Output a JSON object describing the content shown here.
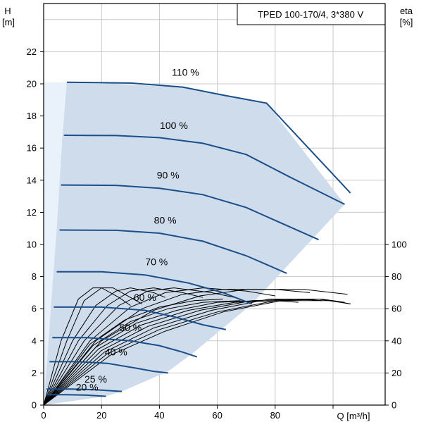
{
  "chart_data": {
    "type": "line",
    "title": "TPED 100-170/4, 3*380 V",
    "y_left": {
      "label": "H",
      "unit": "[m]",
      "lim": [
        0,
        25
      ],
      "ticks": [
        0,
        2,
        4,
        6,
        8,
        10,
        12,
        14,
        16,
        18,
        20,
        22
      ]
    },
    "y_right": {
      "label": "eta",
      "unit": "[%]",
      "lim": [
        0,
        100
      ],
      "ticks": [
        0,
        20,
        40,
        60,
        80,
        100
      ]
    },
    "x": {
      "label": "Q [m³/h]",
      "lim": [
        0,
        118
      ],
      "ticks": [
        0,
        20,
        40,
        60,
        80
      ]
    },
    "grid": true,
    "operating_area": [
      [
        0,
        0
      ],
      [
        0,
        20.1
      ],
      [
        8,
        20.1
      ],
      [
        6.5,
        16.8
      ],
      [
        5.5,
        13.7
      ],
      [
        4.5,
        10.9
      ],
      [
        3.5,
        8.3
      ],
      [
        2.5,
        6.1
      ],
      [
        1.8,
        4.2
      ],
      [
        1.2,
        2.7
      ],
      [
        0.6,
        1.0
      ],
      [
        0,
        0
      ]
    ],
    "operating_area_full": [
      [
        8,
        20.1
      ],
      [
        48,
        19.8
      ],
      [
        77,
        18.8
      ],
      [
        104,
        12.5
      ],
      [
        72,
        6.3
      ],
      [
        52,
        3.3
      ],
      [
        43,
        2.1
      ],
      [
        27,
        0.85
      ],
      [
        21.5,
        0.55
      ],
      [
        0,
        0
      ]
    ],
    "head_curves": [
      {
        "label": "110 %",
        "points": [
          [
            8,
            20.1
          ],
          [
            30,
            20.05
          ],
          [
            48,
            19.8
          ],
          [
            62,
            19.3
          ],
          [
            77,
            18.8
          ],
          [
            106,
            13.2
          ]
        ]
      },
      {
        "label": "100 %",
        "points": [
          [
            7,
            16.8
          ],
          [
            25,
            16.78
          ],
          [
            40,
            16.65
          ],
          [
            55,
            16.3
          ],
          [
            70,
            15.6
          ],
          [
            85,
            14.2
          ],
          [
            104,
            12.5
          ]
        ]
      },
      {
        "label": "90 %",
        "points": [
          [
            6,
            13.7
          ],
          [
            25,
            13.68
          ],
          [
            40,
            13.5
          ],
          [
            55,
            13.1
          ],
          [
            70,
            12.3
          ],
          [
            95,
            10.3
          ]
        ]
      },
      {
        "label": "80 %",
        "points": [
          [
            5.5,
            10.9
          ],
          [
            25,
            10.88
          ],
          [
            40,
            10.7
          ],
          [
            55,
            10.2
          ],
          [
            70,
            9.3
          ],
          [
            84,
            8.2
          ]
        ]
      },
      {
        "label": "70 %",
        "points": [
          [
            4.5,
            8.3
          ],
          [
            20,
            8.3
          ],
          [
            35,
            8.1
          ],
          [
            50,
            7.6
          ],
          [
            62,
            7.0
          ],
          [
            72,
            6.3
          ]
        ]
      },
      {
        "label": "60 %",
        "points": [
          [
            3.5,
            6.1
          ],
          [
            20,
            6.1
          ],
          [
            35,
            5.9
          ],
          [
            45,
            5.5
          ],
          [
            55,
            5.0
          ],
          [
            63,
            4.7
          ]
        ]
      },
      {
        "label": "50 %",
        "points": [
          [
            3,
            4.2
          ],
          [
            15,
            4.2
          ],
          [
            30,
            4.0
          ],
          [
            40,
            3.7
          ],
          [
            48,
            3.3
          ],
          [
            53,
            3.0
          ]
        ]
      },
      {
        "label": "40 %",
        "points": [
          [
            2,
            2.7
          ],
          [
            12,
            2.7
          ],
          [
            22,
            2.6
          ],
          [
            32,
            2.3
          ],
          [
            38,
            2.1
          ],
          [
            43,
            2.0
          ]
        ]
      },
      {
        "label": "25 %",
        "points": [
          [
            1,
            1.0
          ],
          [
            10,
            1.0
          ],
          [
            18,
            0.95
          ],
          [
            27,
            0.85
          ]
        ]
      },
      {
        "label": "20 %",
        "points": [
          [
            0.8,
            0.65
          ],
          [
            8,
            0.65
          ],
          [
            15,
            0.62
          ],
          [
            21.5,
            0.55
          ]
        ]
      }
    ],
    "efficiency_curves": [
      {
        "points": [
          [
            0,
            0
          ],
          [
            6,
            40
          ],
          [
            12,
            66
          ],
          [
            17,
            73
          ],
          [
            20,
            73
          ],
          [
            26,
            67
          ],
          [
            30,
            62
          ]
        ]
      },
      {
        "points": [
          [
            0,
            0
          ],
          [
            8,
            40
          ],
          [
            14,
            65
          ],
          [
            20,
            73
          ],
          [
            24,
            73
          ],
          [
            30,
            67
          ],
          [
            34,
            63
          ]
        ]
      },
      {
        "points": [
          [
            0,
            0
          ],
          [
            10,
            40
          ],
          [
            18,
            62
          ],
          [
            25,
            71
          ],
          [
            30,
            73
          ],
          [
            38,
            70
          ],
          [
            42,
            67
          ]
        ]
      },
      {
        "points": [
          [
            0,
            0
          ],
          [
            12,
            40
          ],
          [
            22,
            62
          ],
          [
            30,
            71
          ],
          [
            38,
            73
          ],
          [
            48,
            70
          ],
          [
            55,
            67
          ]
        ]
      },
      {
        "points": [
          [
            0,
            0
          ],
          [
            14,
            40
          ],
          [
            26,
            62
          ],
          [
            36,
            71
          ],
          [
            45,
            73
          ],
          [
            58,
            70
          ],
          [
            66,
            67
          ]
        ]
      },
      {
        "points": [
          [
            0,
            0
          ],
          [
            16,
            40
          ],
          [
            30,
            61
          ],
          [
            42,
            70
          ],
          [
            55,
            73
          ],
          [
            70,
            71
          ],
          [
            80,
            68
          ]
        ]
      },
      {
        "points": [
          [
            0,
            0
          ],
          [
            18,
            40
          ],
          [
            34,
            60
          ],
          [
            48,
            69
          ],
          [
            62,
            72
          ],
          [
            80,
            72
          ],
          [
            92,
            70
          ]
        ]
      },
      {
        "points": [
          [
            0,
            0
          ],
          [
            20,
            40
          ],
          [
            38,
            59
          ],
          [
            54,
            68
          ],
          [
            70,
            72
          ],
          [
            90,
            72
          ],
          [
            105,
            69
          ]
        ]
      },
      {
        "points": [
          [
            0,
            0
          ],
          [
            16,
            38
          ],
          [
            28,
            53
          ],
          [
            40,
            61
          ],
          [
            52,
            65
          ],
          [
            62,
            66
          ]
        ]
      },
      {
        "points": [
          [
            0,
            0
          ],
          [
            17,
            37
          ],
          [
            30,
            52
          ],
          [
            43,
            60
          ],
          [
            55,
            64
          ],
          [
            68,
            65
          ]
        ]
      },
      {
        "points": [
          [
            0,
            0
          ],
          [
            18,
            36
          ],
          [
            32,
            51
          ],
          [
            46,
            59
          ],
          [
            60,
            64
          ],
          [
            74,
            65
          ]
        ]
      },
      {
        "points": [
          [
            0,
            0
          ],
          [
            19,
            35
          ],
          [
            34,
            50
          ],
          [
            50,
            59
          ],
          [
            66,
            64
          ],
          [
            80,
            65
          ],
          [
            88,
            64
          ]
        ]
      },
      {
        "points": [
          [
            0,
            0
          ],
          [
            20,
            34
          ],
          [
            36,
            49
          ],
          [
            54,
            59
          ],
          [
            72,
            65
          ],
          [
            88,
            66
          ],
          [
            96,
            65
          ]
        ]
      },
      {
        "points": [
          [
            0,
            0
          ],
          [
            21,
            33
          ],
          [
            38,
            48
          ],
          [
            58,
            59
          ],
          [
            78,
            66
          ],
          [
            95,
            66
          ],
          [
            106,
            63
          ]
        ]
      },
      {
        "points": [
          [
            0,
            0
          ],
          [
            22,
            32
          ],
          [
            40,
            47
          ],
          [
            60,
            58
          ],
          [
            80,
            65
          ],
          [
            96,
            66
          ],
          [
            104,
            64
          ]
        ]
      },
      {
        "points": [
          [
            0,
            0
          ],
          [
            23,
            31
          ],
          [
            42,
            46
          ],
          [
            62,
            58
          ],
          [
            82,
            65
          ],
          [
            100,
            65
          ],
          [
            106,
            63
          ]
        ]
      }
    ]
  }
}
